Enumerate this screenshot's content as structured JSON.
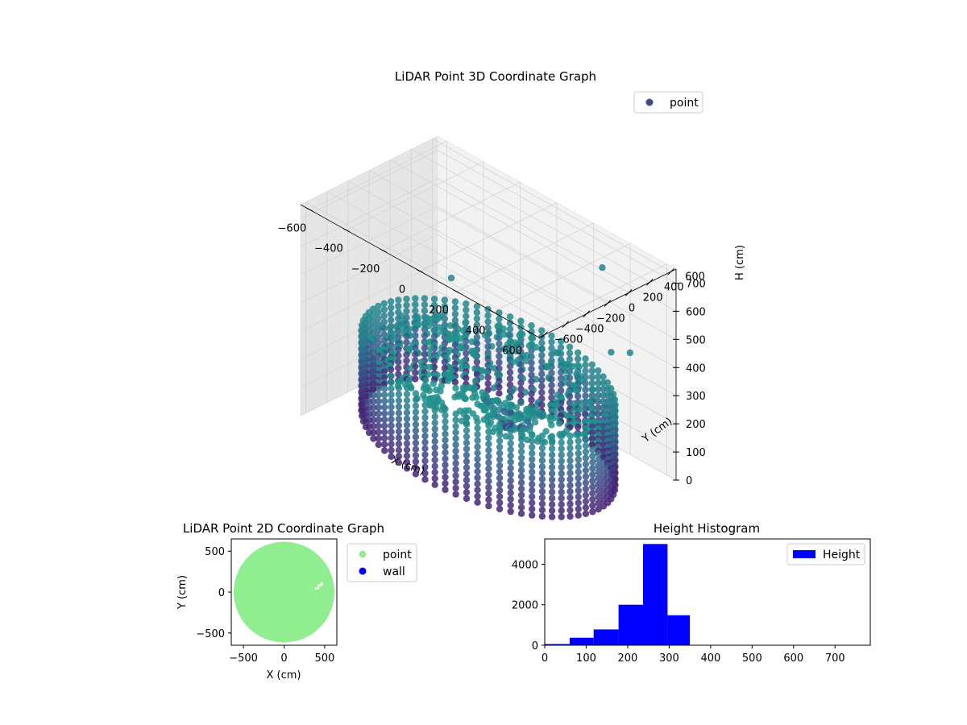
{
  "colors": {
    "point_3d_legend": "#3e4a89",
    "point_2d": "#90ee90",
    "wall": "#0000ff",
    "hist": "#0000ff",
    "pane_bg_light": "#f2f2f2",
    "pane_bg_dark": "#e6e6e6",
    "grid": "#d3d3d3",
    "viridis_low": "#440154",
    "viridis_mid": "#3b528b",
    "viridis_teal": "#21918c"
  },
  "chart_data": [
    {
      "type": "scatter",
      "projection": "3d",
      "title": "LiDAR Point 3D Coordinate Graph",
      "xlabel": "X (cm)",
      "ylabel": "Y (cm)",
      "zlabel": "H (cm)",
      "xlim": [
        -650,
        650
      ],
      "ylim": [
        -650,
        650
      ],
      "zlim": [
        750,
        0
      ],
      "z_inverted": true,
      "xticks": [
        "−600",
        "−400",
        "−200",
        "0",
        "200",
        "400",
        "600"
      ],
      "yticks": [
        "−600",
        "−400",
        "−200",
        "0",
        "200",
        "400",
        "600"
      ],
      "zticks": [
        "0",
        "100",
        "200",
        "300",
        "400",
        "500",
        "600",
        "700"
      ],
      "colormap": "viridis",
      "legend": [
        "point"
      ],
      "legend_position": "upper-right",
      "grid": true,
      "wall": {
        "radius": 600,
        "h_min": 0,
        "h_max": 300
      },
      "floor_height": 250,
      "peak_center": [
        60,
        120
      ],
      "outliers": [
        [
          600,
          300,
          500
        ],
        [
          520,
          260,
          480
        ],
        [
          -420,
          380,
          380
        ],
        [
          -60,
          300,
          100
        ],
        [
          380,
          420,
          700
        ]
      ]
    },
    {
      "type": "scatter",
      "title": "LiDAR Point 2D Coordinate Graph",
      "xlabel": "X (cm)",
      "ylabel": "Y (cm)",
      "xlim": [
        -650,
        650
      ],
      "ylim": [
        -650,
        650
      ],
      "xticks": [
        "−500",
        "0",
        "500"
      ],
      "yticks": [
        "−500",
        "0",
        "500"
      ],
      "circle_center": [
        0,
        0
      ],
      "circle_radius": 620,
      "legend": [
        "point",
        "wall"
      ],
      "legend_position": "outside-right",
      "grid": false
    },
    {
      "type": "bar",
      "title": "Height Histogram",
      "xlim": [
        0,
        785
      ],
      "ylim": [
        0,
        5250
      ],
      "xticks": [
        "0",
        "100",
        "200",
        "300",
        "400",
        "500",
        "600",
        "700"
      ],
      "yticks": [
        "0",
        "2000",
        "4000"
      ],
      "bins": [
        [
          0,
          60
        ],
        [
          60,
          118
        ],
        [
          118,
          178
        ],
        [
          178,
          237
        ],
        [
          237,
          296
        ],
        [
          296,
          350
        ],
        [
          350,
          410
        ],
        [
          410,
          470
        ],
        [
          470,
          530
        ],
        [
          530,
          590
        ],
        [
          590,
          650
        ],
        [
          650,
          710
        ],
        [
          710,
          770
        ]
      ],
      "values": [
        60,
        370,
        780,
        2000,
        5000,
        1480,
        20,
        10,
        8,
        5,
        4,
        3,
        2
      ],
      "legend": [
        "Height"
      ],
      "legend_position": "upper-right",
      "grid": false
    }
  ]
}
